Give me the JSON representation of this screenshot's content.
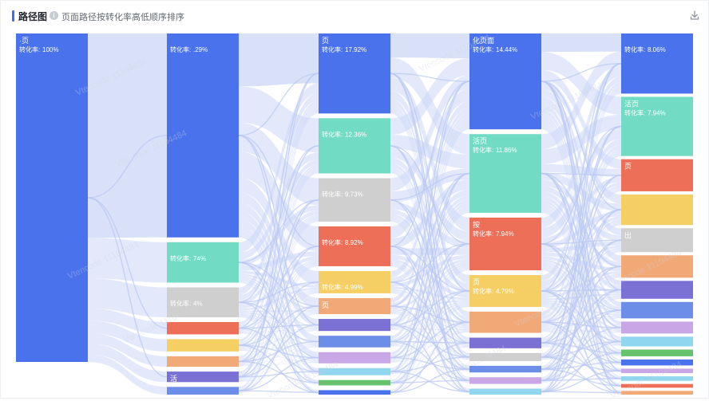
{
  "header": {
    "title": "路径图",
    "subtitle": "页面路径按转化率高低顺序排序",
    "info_icon": "info-icon",
    "download_icon": "download-icon"
  },
  "watermark_text": "Vtencode 11104484",
  "colors": {
    "accent": "#3b6ef5",
    "link": "#ccd7f7"
  },
  "chart_data": {
    "type": "sankey",
    "title": "路径图",
    "levels": [
      {
        "nodes": [
          {
            "label": "·页",
            "rate_label": "转化率:",
            "rate": "100%",
            "value": 100,
            "color": "#4a72ec"
          }
        ]
      },
      {
        "nodes": [
          {
            "label": "",
            "rate_label": "转化率:",
            "rate": ".29%",
            "value": 58,
            "color": "#4a72ec"
          },
          {
            "label": "",
            "rate_label": "转化率:",
            "rate": "74%",
            "value": 11.5,
            "color": "#72dbc4"
          },
          {
            "label": "",
            "rate_label": "转化率:",
            "rate": "4%",
            "value": 8.5,
            "color": "#cfcfcf"
          },
          {
            "label": "",
            "rate_label": "",
            "rate": "",
            "value": 3.5,
            "color": "#ee6f57"
          },
          {
            "label": "",
            "rate_label": "",
            "rate": "",
            "value": 3.5,
            "color": "#f5cf64"
          },
          {
            "label": "",
            "rate_label": "",
            "rate": "",
            "value": 3,
            "color": "#f2a978"
          },
          {
            "label": "活",
            "rate_label": "",
            "rate": "",
            "value": 3,
            "color": "#7b70d4"
          },
          {
            "label": "",
            "rate_label": "",
            "rate": "",
            "value": 2.2,
            "color": "#6d8ee8"
          }
        ]
      },
      {
        "nodes": [
          {
            "label": "页",
            "rate_label": "转化率:",
            "rate": "17.92%",
            "value": 17.92,
            "color": "#4a72ec"
          },
          {
            "label": "",
            "rate_label": "转化率:",
            "rate": "12.36%",
            "value": 12.36,
            "color": "#72dbc4"
          },
          {
            "label": "",
            "rate_label": "转化率:",
            "rate": "9.73%",
            "value": 9.73,
            "color": "#cfcfcf"
          },
          {
            "label": "",
            "rate_label": "转化率:",
            "rate": "8.92%",
            "value": 8.92,
            "color": "#ee6f57"
          },
          {
            "label": "",
            "rate_label": "转化率:",
            "rate": "4.99%",
            "value": 4.99,
            "color": "#f5cf64"
          },
          {
            "label": "页",
            "rate_label": "",
            "rate": "",
            "value": 3.6,
            "color": "#f2a978"
          },
          {
            "label": "",
            "rate_label": "",
            "rate": "",
            "value": 2.7,
            "color": "#7b70d4"
          },
          {
            "label": "",
            "rate_label": "",
            "rate": "",
            "value": 2.6,
            "color": "#6d8ee8"
          },
          {
            "label": "",
            "rate_label": "",
            "rate": "",
            "value": 2.5,
            "color": "#c9a6e6"
          },
          {
            "label": "",
            "rate_label": "",
            "rate": "",
            "value": 1.6,
            "color": "#8fd6ee"
          },
          {
            "label": "",
            "rate_label": "",
            "rate": "",
            "value": 1.2,
            "color": "#66c26c"
          },
          {
            "label": "",
            "rate_label": "",
            "rate": "",
            "value": 1.0,
            "color": "#4a72ec"
          }
        ]
      },
      {
        "nodes": [
          {
            "label": "化页面",
            "rate_label": "转化率:",
            "rate": "14.44%",
            "value": 14.44,
            "color": "#4a72ec"
          },
          {
            "label": "活页",
            "rate_label": "转化率:",
            "rate": "11.86%",
            "value": 11.86,
            "color": "#72dbc4"
          },
          {
            "label": "按",
            "rate_label": "转化率:",
            "rate": "7.94%",
            "value": 7.94,
            "color": "#ee6f57"
          },
          {
            "label": "页",
            "rate_label": "转化率:",
            "rate": "4.79%",
            "value": 4.79,
            "color": "#f5cf64"
          },
          {
            "label": "",
            "rate_label": "",
            "rate": "",
            "value": 3.2,
            "color": "#f2a978"
          },
          {
            "label": "",
            "rate_label": "",
            "rate": "",
            "value": 1.6,
            "color": "#7b70d4"
          },
          {
            "label": "",
            "rate_label": "",
            "rate": "",
            "value": 1.2,
            "color": "#cfcfcf"
          },
          {
            "label": "",
            "rate_label": "",
            "rate": "",
            "value": 1.0,
            "color": "#6d8ee8"
          },
          {
            "label": "",
            "rate_label": "",
            "rate": "",
            "value": 1.0,
            "color": "#c9a6e6"
          },
          {
            "label": "",
            "rate_label": "",
            "rate": "",
            "value": 0.9,
            "color": "#8fd6ee"
          }
        ]
      },
      {
        "nodes": [
          {
            "label": "",
            "rate_label": "转化率:",
            "rate": "8.06%",
            "value": 8.06,
            "color": "#4a72ec"
          },
          {
            "label": "活页",
            "rate_label": "转化率:",
            "rate": "7.94%",
            "value": 7.94,
            "color": "#72dbc4"
          },
          {
            "label": "页",
            "rate_label": "",
            "rate": "",
            "value": 4.3,
            "color": "#ee6f57"
          },
          {
            "label": "",
            "rate_label": "",
            "rate": "",
            "value": 4.1,
            "color": "#f5cf64"
          },
          {
            "label": "出",
            "rate_label": "",
            "rate": "",
            "value": 3.2,
            "color": "#cfcfcf"
          },
          {
            "label": "",
            "rate_label": "",
            "rate": "",
            "value": 3.0,
            "color": "#f2a978"
          },
          {
            "label": "",
            "rate_label": "",
            "rate": "",
            "value": 2.4,
            "color": "#7b70d4"
          },
          {
            "label": "",
            "rate_label": "",
            "rate": "",
            "value": 2.2,
            "color": "#6d8ee8"
          },
          {
            "label": "",
            "rate_label": "",
            "rate": "",
            "value": 1.6,
            "color": "#c9a6e6"
          },
          {
            "label": "",
            "rate_label": "",
            "rate": "",
            "value": 1.3,
            "color": "#8fd6ee"
          },
          {
            "label": "",
            "rate_label": "",
            "rate": "",
            "value": 0.9,
            "color": "#66c26c"
          },
          {
            "label": "",
            "rate_label": "",
            "rate": "",
            "value": 0.8,
            "color": "#4a72ec"
          },
          {
            "label": "",
            "rate_label": "",
            "rate": "",
            "value": 0.6,
            "color": "#c9a6e6"
          },
          {
            "label": "",
            "rate_label": "",
            "rate": "",
            "value": 0.6,
            "color": "#8fd6ee"
          },
          {
            "label": "",
            "rate_label": "",
            "rate": "",
            "value": 0.5,
            "color": "#ee6f57"
          },
          {
            "label": "",
            "rate_label": "",
            "rate": "",
            "value": 0.5,
            "color": "#f2a978"
          }
        ]
      }
    ]
  }
}
